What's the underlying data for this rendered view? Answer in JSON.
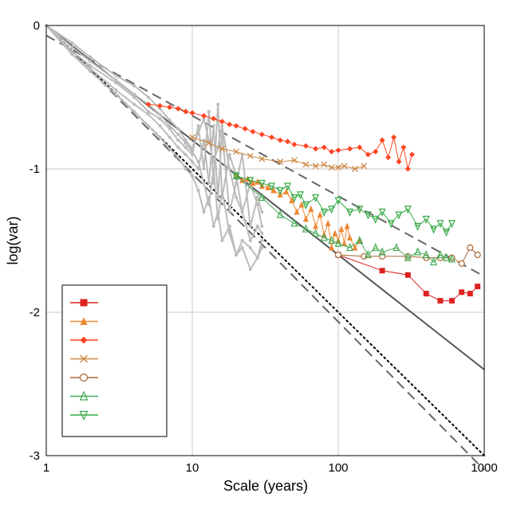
{
  "chart_data": {
    "type": "line",
    "title": "",
    "xlabel": "Scale (years)",
    "ylabel": "log(var)",
    "xscale": "log",
    "xlim": [
      1,
      1000
    ],
    "ylim": [
      -3,
      0
    ],
    "grid": true,
    "legend_position": "bottom-left",
    "x_ticks": [
      {
        "value": 1,
        "label": "1"
      },
      {
        "value": 10,
        "label": "10"
      },
      {
        "value": 100,
        "label": "100"
      },
      {
        "value": 1000,
        "label": "1000"
      }
    ],
    "y_ticks": [
      {
        "value": 0,
        "label": "0"
      },
      {
        "value": -1,
        "label": "-1"
      },
      {
        "value": -2,
        "label": "-2"
      },
      {
        "value": -3,
        "label": "-3"
      }
    ],
    "reference_lines": [
      {
        "style": "solid",
        "color": "#555555",
        "points": [
          [
            1,
            0
          ],
          [
            1000,
            -2.4
          ]
        ]
      },
      {
        "style": "dashed",
        "color": "#666666",
        "points": [
          [
            1,
            -0.07
          ],
          [
            1000,
            -1.75
          ]
        ]
      },
      {
        "style": "dashed",
        "color": "#666666",
        "points": [
          [
            1,
            0
          ],
          [
            1000,
            -3.1
          ]
        ]
      },
      {
        "style": "dotted",
        "color": "#000000",
        "points": [
          [
            1,
            0
          ],
          [
            1000,
            -3.0
          ]
        ]
      }
    ],
    "background_series": {
      "color": "#bbbbbb",
      "x": [
        1,
        1.5,
        2,
        3,
        4,
        5,
        6,
        7,
        8,
        9,
        10,
        11,
        12,
        13,
        14,
        15,
        16,
        18,
        20,
        22,
        25,
        28,
        30
      ],
      "lines": [
        [
          0,
          -0.2,
          -0.3,
          -0.45,
          -0.55,
          -0.62,
          -0.7,
          -0.78,
          -0.85,
          -0.9,
          -0.95,
          -1.0,
          -0.8,
          -1.1,
          -0.7,
          -1.2,
          -0.75,
          -1.3,
          -1.1,
          -0.9,
          -1.4,
          -1.2,
          -1.3
        ],
        [
          0,
          -0.18,
          -0.28,
          -0.4,
          -0.5,
          -0.6,
          -0.65,
          -0.72,
          -0.8,
          -0.85,
          -0.9,
          -0.7,
          -1.0,
          -0.6,
          -1.1,
          -0.55,
          -1.2,
          -0.9,
          -1.05,
          -1.3,
          -1.5,
          -1.4,
          -1.45
        ],
        [
          0,
          -0.15,
          -0.25,
          -0.38,
          -0.48,
          -0.55,
          -0.62,
          -0.7,
          -0.76,
          -0.82,
          -0.88,
          -0.95,
          -1.1,
          -1.25,
          -1.0,
          -1.35,
          -1.15,
          -1.45,
          -1.6,
          -1.5,
          -1.55,
          -1.62,
          -1.5
        ],
        [
          0,
          -0.12,
          -0.22,
          -0.35,
          -0.42,
          -0.5,
          -0.58,
          -0.66,
          -0.72,
          -0.8,
          -0.86,
          -0.75,
          -0.65,
          -0.8,
          -0.95,
          -0.85,
          -0.7,
          -1.0,
          -1.2,
          -1.3,
          -1.1,
          -1.25,
          -1.4
        ],
        [
          0,
          -0.2,
          -0.32,
          -0.48,
          -0.6,
          -0.7,
          -0.78,
          -0.86,
          -0.92,
          -1.0,
          -1.05,
          -1.15,
          -1.3,
          -1.2,
          -1.4,
          -1.3,
          -1.5,
          -1.4,
          -1.6,
          -1.55,
          -1.7,
          -1.62,
          -1.55
        ]
      ]
    },
    "series": [
      {
        "marker": "square-filled",
        "color": "#dd2222",
        "x": [
          100,
          200,
          300,
          400,
          500,
          600,
          700,
          800,
          900
        ],
        "y": [
          -1.6,
          -1.71,
          -1.74,
          -1.87,
          -1.92,
          -1.92,
          -1.86,
          -1.87,
          -1.82
        ]
      },
      {
        "marker": "triangle-up-filled",
        "color": "#ee8833",
        "x": [
          20,
          22,
          24,
          26,
          28,
          30,
          33,
          36,
          40,
          44,
          48,
          52,
          56,
          60,
          65,
          70,
          75,
          80,
          85,
          90,
          95,
          100,
          105,
          110,
          115,
          120,
          130,
          140
        ],
        "y": [
          -1.05,
          -1.08,
          -1.07,
          -1.1,
          -1.09,
          -1.12,
          -1.13,
          -1.15,
          -1.18,
          -1.16,
          -1.22,
          -1.3,
          -1.25,
          -1.35,
          -1.28,
          -1.4,
          -1.32,
          -1.46,
          -1.38,
          -1.55,
          -1.45,
          -1.5,
          -1.42,
          -1.52,
          -1.4,
          -1.48,
          -1.55,
          -1.5
        ]
      },
      {
        "marker": "diamond-filled",
        "color": "#ff4422",
        "x": [
          5,
          6,
          7,
          8,
          9,
          10,
          12,
          14,
          16,
          18,
          20,
          23,
          26,
          30,
          35,
          40,
          45,
          50,
          60,
          70,
          80,
          90,
          100,
          120,
          140,
          160,
          180,
          200,
          220,
          240,
          260,
          280,
          300,
          320
        ],
        "y": [
          -0.55,
          -0.56,
          -0.57,
          -0.58,
          -0.6,
          -0.61,
          -0.63,
          -0.65,
          -0.67,
          -0.69,
          -0.7,
          -0.72,
          -0.74,
          -0.76,
          -0.78,
          -0.8,
          -0.81,
          -0.83,
          -0.84,
          -0.86,
          -0.85,
          -0.88,
          -0.87,
          -0.86,
          -0.85,
          -0.9,
          -0.88,
          -0.8,
          -0.92,
          -0.78,
          -0.95,
          -0.85,
          -1.0,
          -0.9
        ]
      },
      {
        "marker": "x",
        "color": "#cc8844",
        "x": [
          10,
          13,
          16,
          20,
          25,
          30,
          40,
          50,
          60,
          70,
          80,
          90,
          100,
          110,
          130,
          150
        ],
        "y": [
          -0.78,
          -0.82,
          -0.86,
          -0.88,
          -0.91,
          -0.93,
          -0.95,
          -0.94,
          -0.97,
          -0.98,
          -0.97,
          -0.99,
          -0.99,
          -0.98,
          -1.0,
          -0.98
        ]
      },
      {
        "marker": "circle-open",
        "color": "#aa6633",
        "x": [
          100,
          150,
          200,
          300,
          400,
          500,
          600,
          700,
          800,
          900
        ],
        "y": [
          -1.6,
          -1.61,
          -1.61,
          -1.61,
          -1.62,
          -1.62,
          -1.62,
          -1.66,
          -1.55,
          -1.6
        ]
      },
      {
        "marker": "triangle-up-open",
        "color": "#44aa55",
        "x": [
          20,
          30,
          40,
          50,
          60,
          70,
          80,
          90,
          100,
          120,
          140,
          160,
          180,
          200,
          250,
          300,
          350,
          400,
          450,
          500,
          550,
          600
        ],
        "y": [
          -1.05,
          -1.2,
          -1.32,
          -1.38,
          -1.42,
          -1.45,
          -1.48,
          -1.5,
          -1.52,
          -1.55,
          -1.5,
          -1.6,
          -1.55,
          -1.58,
          -1.55,
          -1.62,
          -1.58,
          -1.6,
          -1.65,
          -1.6,
          -1.62,
          -1.63
        ]
      },
      {
        "marker": "triangle-down-open",
        "color": "#33aa44",
        "x": [
          20,
          25,
          30,
          35,
          40,
          45,
          50,
          55,
          60,
          70,
          80,
          90,
          100,
          120,
          140,
          160,
          180,
          200,
          230,
          260,
          300,
          350,
          400,
          450,
          500,
          550,
          600
        ],
        "y": [
          -1.05,
          -1.08,
          -1.1,
          -1.12,
          -1.15,
          -1.12,
          -1.2,
          -1.18,
          -1.25,
          -1.2,
          -1.3,
          -1.28,
          -1.22,
          -1.3,
          -1.28,
          -1.32,
          -1.35,
          -1.3,
          -1.38,
          -1.32,
          -1.28,
          -1.4,
          -1.35,
          -1.42,
          -1.38,
          -1.44,
          -1.38
        ]
      }
    ]
  }
}
